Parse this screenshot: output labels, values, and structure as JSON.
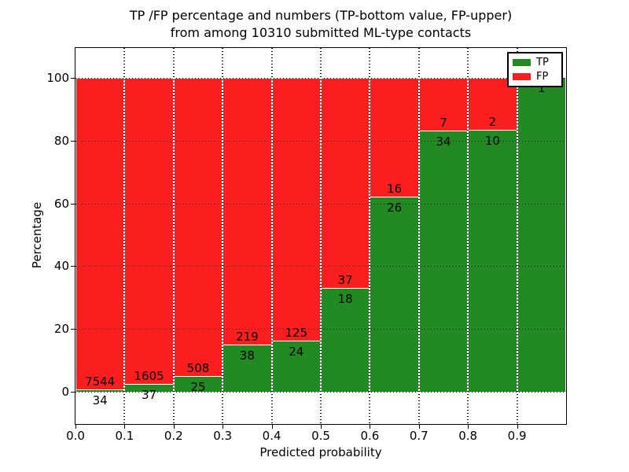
{
  "title": {
    "line1": "TP /FP percentage and numbers (TP-bottom value, FP-upper)",
    "line2": "from among 10310 submitted ML-type contacts"
  },
  "axes": {
    "xlabel": "Predicted probability",
    "ylabel": "Percentage",
    "x_tick_labels": [
      "0.0",
      "0.1",
      "0.2",
      "0.3",
      "0.4",
      "0.5",
      "0.6",
      "0.7",
      "0.8",
      "0.9"
    ],
    "y_tick_labels": [
      "0",
      "20",
      "40",
      "60",
      "80",
      "100"
    ],
    "y_tick_values": [
      0,
      20,
      40,
      60,
      80,
      100
    ]
  },
  "legend": {
    "position": "upper right",
    "entries": [
      {
        "label": "TP",
        "color": "#228a22"
      },
      {
        "label": "FP",
        "color": "#fa1e1e"
      }
    ]
  },
  "colors": {
    "tp": "#228a22",
    "fp": "#fa1e1e",
    "bar_edge": "#ffffff",
    "grid": "#000000",
    "text": "#000000",
    "background": "#ffffff"
  },
  "chart_data": {
    "type": "bar",
    "stacked": true,
    "normalized_to_percent": true,
    "title": "TP /FP percentage and numbers (TP-bottom value, FP-upper) from among 10310 submitted ML-type contacts",
    "xlabel": "Predicted probability",
    "ylabel": "Percentage",
    "total_submitted": 10310,
    "bin_width": 0.1,
    "categories": [
      "0.0-0.1",
      "0.1-0.2",
      "0.2-0.3",
      "0.3-0.4",
      "0.4-0.5",
      "0.5-0.6",
      "0.6-0.7",
      "0.7-0.8",
      "0.8-0.9",
      "0.9-1.0"
    ],
    "bin_starts": [
      0.0,
      0.1,
      0.2,
      0.3,
      0.4,
      0.5,
      0.6,
      0.7,
      0.8,
      0.9
    ],
    "series": [
      {
        "name": "TP",
        "color": "#228a22",
        "counts": [
          34,
          37,
          25,
          38,
          24,
          18,
          26,
          34,
          10,
          1
        ],
        "percent": [
          0.45,
          2.25,
          4.69,
          14.79,
          16.11,
          32.73,
          61.9,
          82.93,
          83.33,
          100.0
        ]
      },
      {
        "name": "FP",
        "color": "#fa1e1e",
        "counts": [
          7544,
          1605,
          508,
          219,
          125,
          37,
          16,
          7,
          2,
          0
        ],
        "percent": [
          99.55,
          97.75,
          95.31,
          85.21,
          83.89,
          67.27,
          38.1,
          17.07,
          16.67,
          0.0
        ]
      }
    ],
    "xlim": [
      0.0,
      1.0
    ],
    "ylim": [
      0,
      100
    ],
    "grid": "dotted black, drawn above bars",
    "legend_position": "upper right"
  }
}
